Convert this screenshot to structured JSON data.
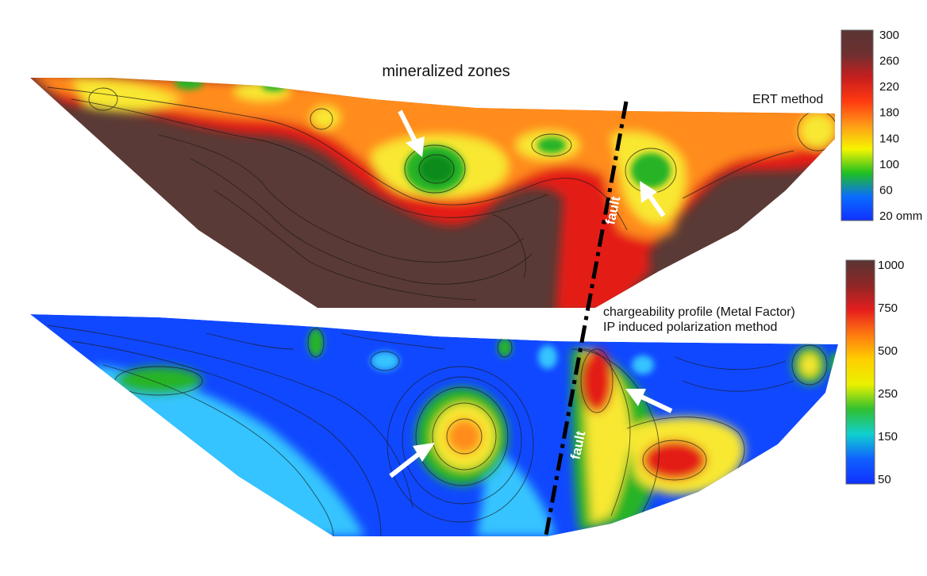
{
  "labels": {
    "top_title": "mineralized zones",
    "ert_method": "ERT method",
    "ip_line1": "chargeability profile (Metal Factor)",
    "ip_line2": "IP induced polarization method",
    "fault_top": "fault",
    "fault_bottom": "fault"
  },
  "colorbar_top": {
    "ticks": [
      "300",
      "260",
      "220",
      "180",
      "140",
      "100",
      "60",
      "20 omm"
    ],
    "colors": [
      "#5a3534",
      "#6e3030",
      "#c81e1e",
      "#ff3a10",
      "#ff9a18",
      "#f5f500",
      "#20c020",
      "#0a6cff",
      "#1030ff"
    ]
  },
  "colorbar_bottom": {
    "ticks": [
      "1000",
      "750",
      "500",
      "250",
      "150",
      "50"
    ],
    "colors": [
      "#5a3534",
      "#8e2626",
      "#e61e1e",
      "#ff7a10",
      "#ffd000",
      "#eaf000",
      "#30c030",
      "#10d0d0",
      "#1060ff",
      "#1030ff"
    ]
  },
  "profile_colors": {
    "resistive": "#5a3a36",
    "red": "#e41c14",
    "orange": "#ff8c1a",
    "yellow": "#f8e830",
    "green": "#28b428",
    "dark_green": "#0a8a1e",
    "blue": "#1048ff",
    "light_blue": "#35c4ff",
    "fault_line": "#000000",
    "arrow": "#ffffff"
  }
}
